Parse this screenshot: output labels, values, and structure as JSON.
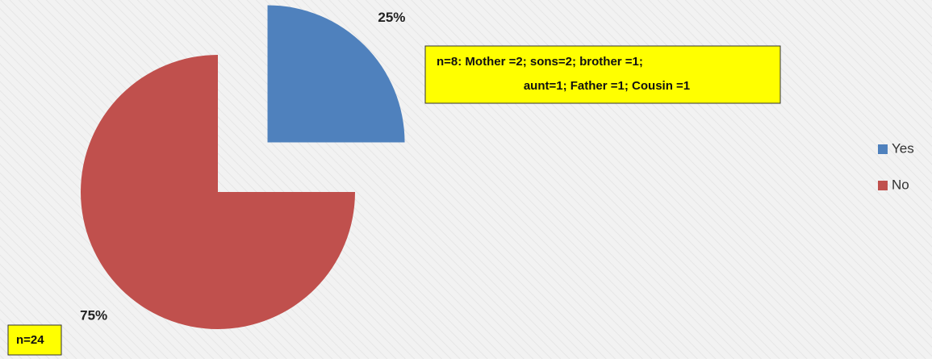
{
  "chart_data": {
    "type": "pie",
    "categories": [
      "Yes",
      "No"
    ],
    "values": [
      25,
      75
    ],
    "value_labels": [
      "25%",
      "75%"
    ],
    "colors": [
      "#4f81bd",
      "#c0504d"
    ],
    "legend": "right",
    "annotations": [
      {
        "lines": [
          "n=8:   Mother =2; sons=2; brother =1;",
          "aunt=1; Father =1; Cousin =1"
        ]
      },
      {
        "lines": [
          "n=24"
        ]
      }
    ]
  }
}
